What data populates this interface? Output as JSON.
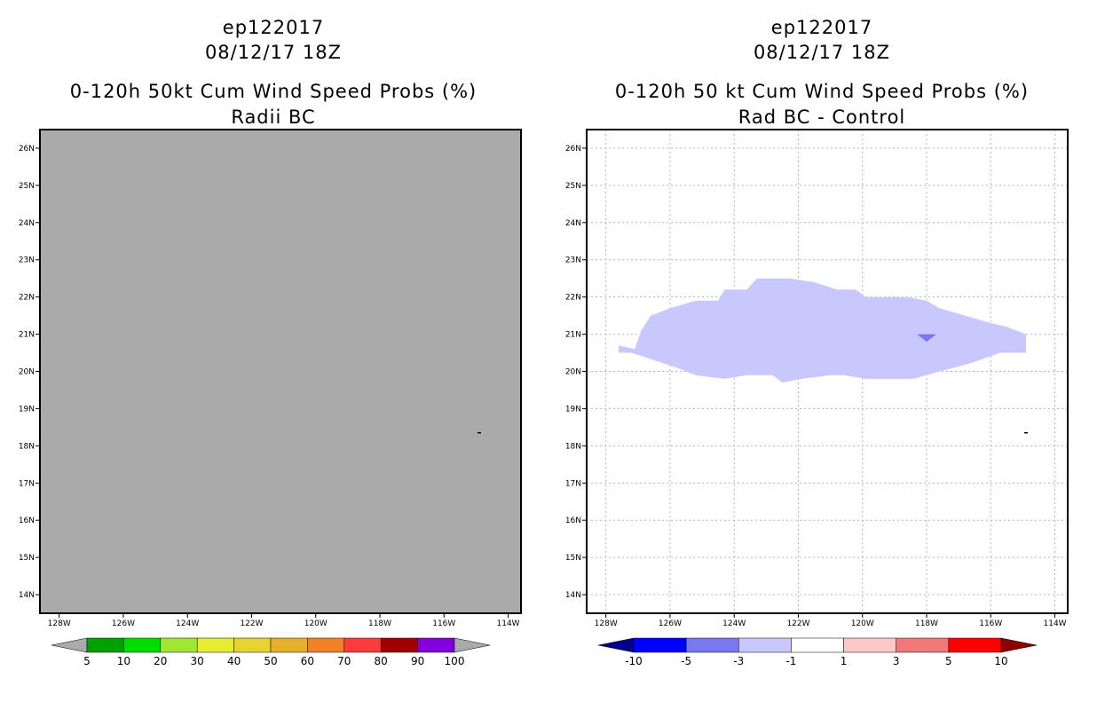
{
  "chart_data": [
    {
      "type": "heatmap",
      "title": [
        "ep122017",
        "08/12/17 18Z",
        "0-120h 50kt Cum Wind Speed Probs (%)",
        "Radii BC"
      ],
      "xlabel": "",
      "ylabel": "",
      "x_ticks": [
        "128W",
        "126W",
        "124W",
        "122W",
        "120W",
        "118W",
        "116W",
        "114W"
      ],
      "y_ticks": [
        "14N",
        "15N",
        "16N",
        "17N",
        "18N",
        "19N",
        "20N",
        "21N",
        "22N",
        "23N",
        "24N",
        "25N",
        "26N"
      ],
      "xlim": [
        -128.6,
        -113.6
      ],
      "ylim": [
        13.5,
        26.5
      ],
      "grid": false,
      "background_color": "#aaaaaa",
      "storm_marker": {
        "lon": -114.9,
        "lat": 18.35
      },
      "field": [],
      "colorbar": {
        "labels": [
          "5",
          "10",
          "20",
          "30",
          "40",
          "50",
          "60",
          "70",
          "80",
          "90",
          "100"
        ],
        "colors": [
          "#aaaaaa",
          "#00a000",
          "#00dc00",
          "#a0e632",
          "#e6ec32",
          "#e6d232",
          "#e6af2d",
          "#f08228",
          "#fa3c3c",
          "#a00000",
          "#8200dc",
          "#aaaaaa"
        ]
      }
    },
    {
      "type": "heatmap",
      "title": [
        "ep122017",
        "08/12/17 18Z",
        "0-120h 50 kt Cum Wind Speed Probs (%)",
        "Rad BC - Control"
      ],
      "xlabel": "",
      "ylabel": "",
      "x_ticks": [
        "128W",
        "126W",
        "124W",
        "122W",
        "120W",
        "118W",
        "116W",
        "114W"
      ],
      "y_ticks": [
        "14N",
        "15N",
        "16N",
        "17N",
        "18N",
        "19N",
        "20N",
        "21N",
        "22N",
        "23N",
        "24N",
        "25N",
        "26N"
      ],
      "xlim": [
        -128.6,
        -113.6
      ],
      "ylim": [
        13.5,
        26.5
      ],
      "grid": true,
      "background_color": "#ffffff",
      "storm_marker": {
        "lon": -114.9,
        "lat": 18.35
      },
      "field": [
        {
          "range": "-3 to -1",
          "color": "#c8c8ff",
          "polygon": [
            [
              -127.1,
              20.6
            ],
            [
              -126.9,
              21.1
            ],
            [
              -126.6,
              21.5
            ],
            [
              -126.0,
              21.7
            ],
            [
              -125.2,
              21.9
            ],
            [
              -124.5,
              21.9
            ],
            [
              -124.3,
              22.2
            ],
            [
              -123.6,
              22.2
            ],
            [
              -123.3,
              22.5
            ],
            [
              -122.3,
              22.5
            ],
            [
              -121.5,
              22.4
            ],
            [
              -120.8,
              22.2
            ],
            [
              -120.2,
              22.2
            ],
            [
              -119.9,
              22.0
            ],
            [
              -118.6,
              22.0
            ],
            [
              -118.0,
              21.9
            ],
            [
              -117.6,
              21.7
            ],
            [
              -116.8,
              21.5
            ],
            [
              -116.0,
              21.3
            ],
            [
              -115.5,
              21.2
            ],
            [
              -114.9,
              21.0
            ],
            [
              -114.9,
              20.5
            ],
            [
              -115.7,
              20.5
            ],
            [
              -116.7,
              20.2
            ],
            [
              -117.6,
              20.0
            ],
            [
              -118.4,
              19.8
            ],
            [
              -119.4,
              19.8
            ],
            [
              -119.9,
              19.8
            ],
            [
              -120.6,
              19.9
            ],
            [
              -121.0,
              19.9
            ],
            [
              -121.9,
              19.8
            ],
            [
              -122.5,
              19.7
            ],
            [
              -122.8,
              19.9
            ],
            [
              -123.2,
              19.9
            ],
            [
              -123.6,
              19.9
            ],
            [
              -124.3,
              19.8
            ],
            [
              -125.2,
              19.9
            ],
            [
              -125.8,
              20.1
            ],
            [
              -126.5,
              20.3
            ],
            [
              -127.2,
              20.5
            ],
            [
              -127.6,
              20.5
            ],
            [
              -127.6,
              20.7
            ]
          ]
        },
        {
          "range": "-5 to -3",
          "color": "#7878f0",
          "polygon": [
            [
              -118.3,
              21.0
            ],
            [
              -117.7,
              21.0
            ],
            [
              -118.0,
              20.8
            ]
          ]
        }
      ],
      "colorbar": {
        "labels": [
          "-10",
          "-5",
          "-3",
          "-1",
          "1",
          "3",
          "5",
          "10"
        ],
        "colors": [
          "#00008c",
          "#0000ff",
          "#7878f0",
          "#c8c8ff",
          "#ffffff",
          "#ffc8c8",
          "#f07878",
          "#ff0000",
          "#8c0000"
        ]
      }
    }
  ]
}
